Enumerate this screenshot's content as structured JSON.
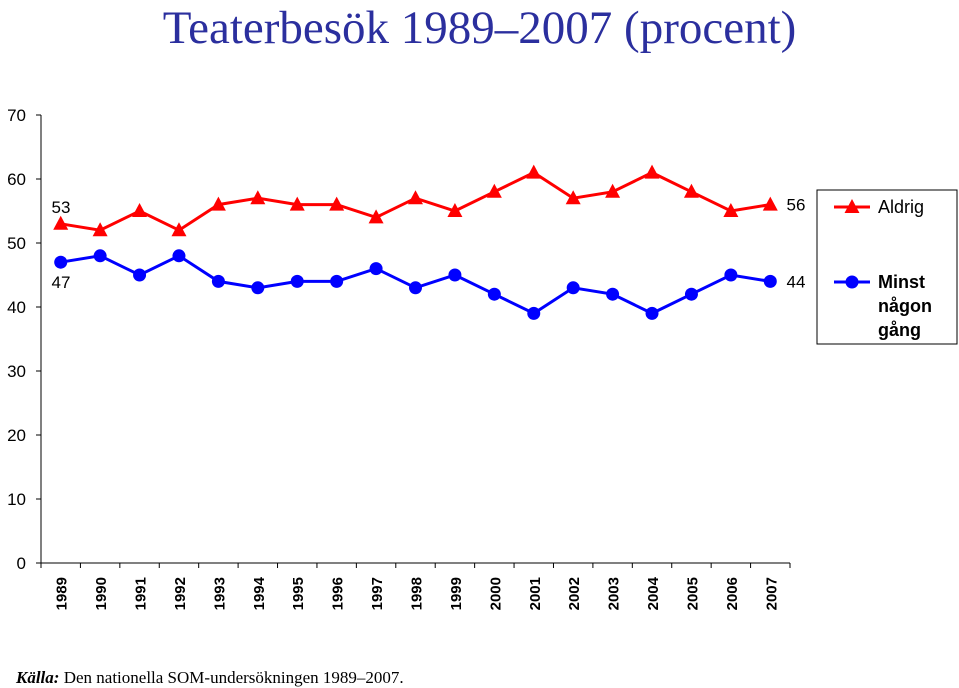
{
  "chart_data": {
    "type": "line",
    "title": "Teaterbesök 1989–2007 (procent)",
    "categories": [
      "1989",
      "1990",
      "1991",
      "1992",
      "1993",
      "1994",
      "1995",
      "1996",
      "1997",
      "1998",
      "1999",
      "2000",
      "2001",
      "2002",
      "2003",
      "2004",
      "2005",
      "2006",
      "2007"
    ],
    "ylim": [
      0,
      70
    ],
    "yticks": [
      "0",
      "10",
      "20",
      "30",
      "40",
      "50",
      "60",
      "70"
    ],
    "grid": false,
    "legend_position": "right",
    "series": [
      {
        "name": "Aldrig",
        "color": "#ff0000",
        "marker": "triangle",
        "values": [
          53,
          52,
          55,
          52,
          56,
          57,
          56,
          56,
          54,
          57,
          55,
          58,
          61,
          57,
          58,
          61,
          58,
          55,
          56
        ],
        "start_label": "53",
        "end_label": "56"
      },
      {
        "name": "Minst någon gång",
        "color": "#0000ff",
        "marker": "circle",
        "values": [
          47,
          48,
          45,
          48,
          44,
          43,
          44,
          44,
          46,
          43,
          45,
          42,
          39,
          43,
          42,
          39,
          42,
          45,
          44
        ],
        "start_label": "47",
        "end_label": "44"
      }
    ]
  },
  "source": {
    "label": "Källa:",
    "text": " Den nationella SOM-undersökningen 1989–2007."
  }
}
